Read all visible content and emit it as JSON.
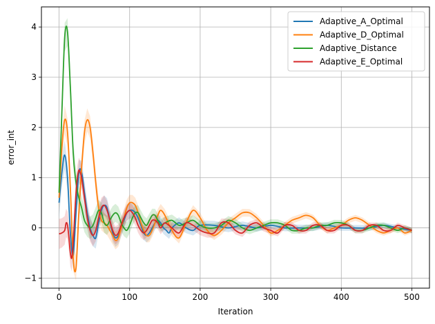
{
  "chart_data": {
    "type": "line",
    "title": "",
    "xlabel": "Iteration",
    "ylabel": "error_int",
    "xlim": [
      -25,
      525
    ],
    "ylim": [
      -1.2,
      4.4
    ],
    "xticks": [
      0,
      100,
      200,
      300,
      400,
      500
    ],
    "yticks": [
      -1,
      0,
      1,
      2,
      3,
      4
    ],
    "grid": true,
    "legend_position": "top-right",
    "series": [
      {
        "name": "Adaptive_A_Optimal",
        "color": "#1f77b4",
        "x": [
          0,
          4,
          8,
          12,
          16,
          20,
          24,
          28,
          32,
          36,
          40,
          44,
          48,
          52,
          56,
          60,
          64,
          68,
          72,
          76,
          80,
          84,
          88,
          92,
          96,
          100,
          104,
          108,
          112,
          116,
          120,
          124,
          128,
          132,
          136,
          140,
          144,
          148,
          152,
          156,
          160,
          170,
          180,
          190,
          200,
          220,
          240,
          260,
          280,
          300,
          320,
          340,
          360,
          380,
          400,
          420,
          440,
          460,
          480,
          500
        ],
        "values": [
          0.5,
          1.1,
          1.45,
          1.0,
          -0.1,
          -0.55,
          0.3,
          1.1,
          1.1,
          0.7,
          0.3,
          0.0,
          -0.15,
          -0.2,
          0.1,
          0.35,
          0.45,
          0.4,
          0.15,
          -0.1,
          -0.2,
          -0.15,
          0.0,
          0.15,
          0.3,
          0.35,
          0.35,
          0.3,
          0.2,
          0.05,
          -0.1,
          -0.15,
          -0.1,
          0.0,
          0.1,
          0.15,
          0.1,
          0.0,
          -0.05,
          -0.1,
          0.0,
          0.1,
          0.0,
          -0.05,
          0.05,
          0.05,
          0.0,
          0.05,
          0.0,
          0.05,
          0.0,
          0.0,
          0.0,
          0.05,
          0.0,
          0.0,
          0.0,
          0.05,
          0.0,
          -0.05
        ]
      },
      {
        "name": "Adaptive_D_Optimal",
        "color": "#ff7f0e",
        "x": [
          0,
          4,
          8,
          12,
          16,
          20,
          24,
          28,
          32,
          36,
          40,
          44,
          48,
          52,
          56,
          60,
          64,
          68,
          72,
          76,
          80,
          84,
          88,
          92,
          96,
          100,
          104,
          108,
          112,
          116,
          120,
          124,
          128,
          132,
          136,
          140,
          144,
          150,
          160,
          170,
          180,
          190,
          200,
          210,
          220,
          230,
          240,
          250,
          260,
          270,
          280,
          290,
          300,
          310,
          320,
          330,
          340,
          350,
          360,
          370,
          380,
          390,
          400,
          410,
          420,
          430,
          440,
          450,
          460,
          470,
          480,
          490,
          500
        ],
        "values": [
          0.6,
          1.6,
          2.15,
          1.9,
          0.8,
          -0.6,
          -0.8,
          0.3,
          1.2,
          1.9,
          2.15,
          2.0,
          1.5,
          0.9,
          0.4,
          0.15,
          0.1,
          0.05,
          -0.05,
          -0.15,
          -0.25,
          -0.2,
          0.0,
          0.2,
          0.4,
          0.5,
          0.5,
          0.45,
          0.3,
          0.1,
          -0.05,
          -0.15,
          -0.15,
          -0.05,
          0.1,
          0.25,
          0.35,
          0.25,
          -0.05,
          -0.2,
          0.1,
          0.35,
          0.2,
          -0.05,
          -0.15,
          -0.05,
          0.1,
          0.2,
          0.3,
          0.3,
          0.2,
          0.05,
          -0.1,
          -0.05,
          0.05,
          0.15,
          0.2,
          0.25,
          0.2,
          0.05,
          -0.05,
          0.0,
          0.05,
          0.15,
          0.2,
          0.15,
          0.05,
          -0.05,
          -0.1,
          -0.05,
          0.0,
          -0.1,
          -0.05
        ]
      },
      {
        "name": "Adaptive_Distance",
        "color": "#2ca02c",
        "x": [
          0,
          4,
          8,
          12,
          16,
          20,
          24,
          28,
          32,
          36,
          40,
          44,
          48,
          52,
          56,
          60,
          64,
          68,
          72,
          76,
          80,
          84,
          88,
          92,
          96,
          100,
          104,
          108,
          112,
          116,
          120,
          124,
          128,
          132,
          136,
          140,
          144,
          150,
          160,
          170,
          180,
          190,
          200,
          210,
          220,
          230,
          240,
          250,
          260,
          270,
          280,
          290,
          300,
          310,
          320,
          330,
          340,
          350,
          360,
          370,
          380,
          390,
          400,
          410,
          420,
          430,
          440,
          450,
          460,
          470,
          480,
          490,
          500
        ],
        "values": [
          0.7,
          2.3,
          3.8,
          3.9,
          2.8,
          1.5,
          0.9,
          0.6,
          0.4,
          0.15,
          0.05,
          0.0,
          0.05,
          0.2,
          0.35,
          0.3,
          0.1,
          0.05,
          0.15,
          0.25,
          0.3,
          0.25,
          0.1,
          0.0,
          -0.05,
          0.05,
          0.2,
          0.3,
          0.3,
          0.2,
          0.1,
          0.05,
          0.15,
          0.25,
          0.25,
          0.15,
          0.05,
          0.1,
          0.15,
          0.05,
          0.1,
          0.15,
          0.05,
          0.0,
          0.0,
          0.05,
          0.15,
          0.1,
          0.0,
          -0.05,
          0.0,
          0.05,
          0.1,
          0.1,
          0.05,
          -0.05,
          -0.05,
          0.0,
          0.0,
          0.05,
          0.05,
          0.1,
          0.1,
          0.05,
          -0.05,
          -0.05,
          0.0,
          0.05,
          0.05,
          0.0,
          -0.05,
          0.0,
          -0.05
        ]
      },
      {
        "name": "Adaptive_E_Optimal",
        "color": "#d62728",
        "x": [
          0,
          4,
          8,
          10,
          12,
          14,
          16,
          18,
          20,
          22,
          24,
          26,
          28,
          30,
          32,
          34,
          36,
          40,
          44,
          48,
          52,
          56,
          60,
          64,
          68,
          72,
          76,
          80,
          84,
          88,
          92,
          96,
          100,
          104,
          108,
          112,
          116,
          120,
          124,
          128,
          132,
          136,
          140,
          144,
          150,
          160,
          170,
          180,
          190,
          200,
          210,
          220,
          230,
          240,
          250,
          260,
          270,
          280,
          290,
          300,
          310,
          320,
          330,
          340,
          350,
          360,
          370,
          380,
          390,
          400,
          410,
          420,
          430,
          440,
          450,
          460,
          470,
          480,
          490,
          500
        ],
        "values": [
          -0.12,
          -0.1,
          -0.05,
          0.1,
          0.05,
          -0.2,
          -0.5,
          -0.6,
          -0.3,
          0.2,
          0.7,
          1.0,
          1.15,
          1.1,
          1.0,
          0.8,
          0.6,
          0.2,
          -0.05,
          -0.15,
          -0.05,
          0.2,
          0.4,
          0.45,
          0.35,
          0.15,
          -0.05,
          -0.15,
          -0.1,
          0.05,
          0.2,
          0.3,
          0.35,
          0.3,
          0.2,
          0.05,
          -0.05,
          -0.1,
          -0.05,
          0.05,
          0.15,
          0.15,
          0.1,
          0.0,
          0.1,
          0.0,
          -0.1,
          0.1,
          0.05,
          -0.05,
          -0.1,
          -0.1,
          0.1,
          0.1,
          -0.05,
          -0.1,
          0.05,
          0.1,
          0.0,
          -0.05,
          -0.1,
          0.05,
          0.05,
          -0.05,
          -0.05,
          0.05,
          0.05,
          -0.05,
          -0.05,
          0.05,
          0.05,
          -0.05,
          -0.05,
          0.05,
          0.05,
          -0.05,
          -0.05,
          0.05,
          0.0,
          -0.05
        ]
      }
    ]
  }
}
